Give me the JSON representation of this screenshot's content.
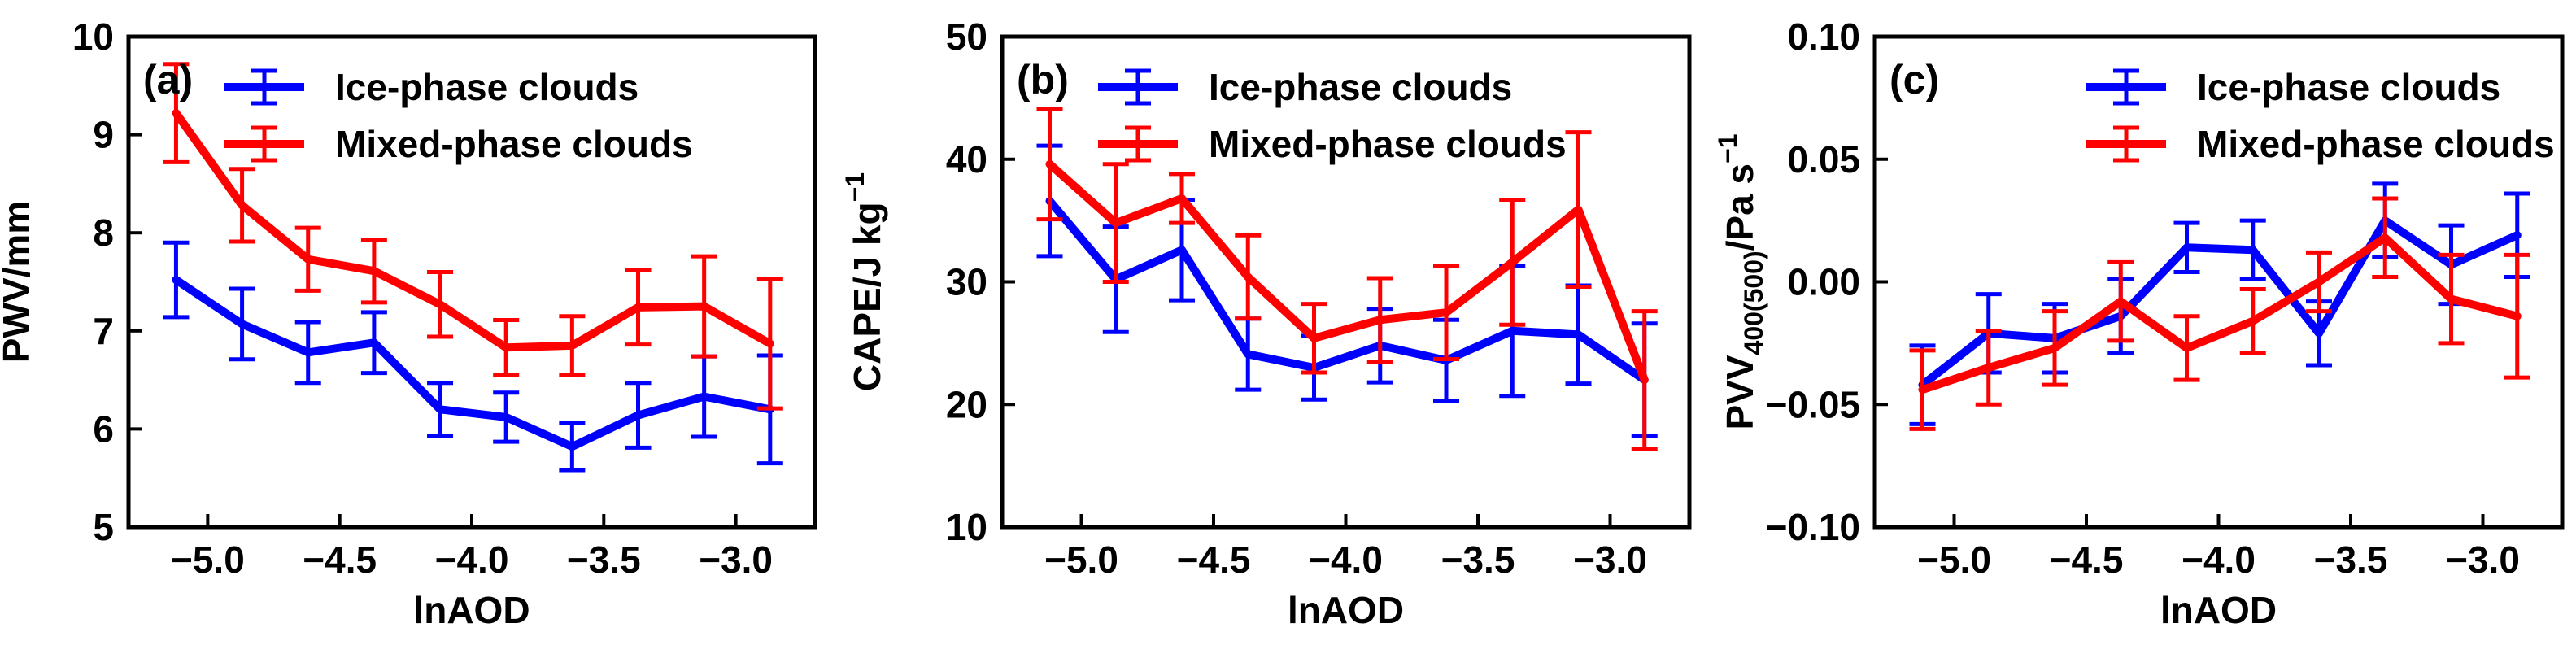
{
  "chart_data": [
    {
      "type": "line",
      "panel_label": "(a)",
      "xlabel": "lnAOD",
      "ylabel": "PWV/mm",
      "xlim": [
        -5.3,
        -2.7
      ],
      "ylim": [
        5,
        10
      ],
      "xticks": [
        -5.0,
        -4.5,
        -4.0,
        -3.5,
        -3.0
      ],
      "xtick_labels": [
        "−5.0",
        "−4.5",
        "−4.0",
        "−3.5",
        "−3.0"
      ],
      "yticks": [
        5,
        6,
        7,
        8,
        9,
        10
      ],
      "ytick_labels": [
        "5",
        "6",
        "7",
        "8",
        "9",
        "10"
      ],
      "x": [
        -5.12,
        -4.87,
        -4.62,
        -4.37,
        -4.12,
        -3.87,
        -3.62,
        -3.37,
        -3.12,
        -2.87
      ],
      "legend_location": "top-left",
      "series": [
        {
          "name": "Ice-phase clouds",
          "color": "#0000ff",
          "values": [
            7.52,
            7.07,
            6.78,
            6.88,
            6.2,
            6.12,
            5.82,
            6.14,
            6.33,
            6.2
          ],
          "errors": [
            0.38,
            0.36,
            0.31,
            0.31,
            0.27,
            0.25,
            0.24,
            0.33,
            0.41,
            0.55
          ]
        },
        {
          "name": "Mixed-phase clouds",
          "color": "#ff0000",
          "values": [
            9.22,
            8.28,
            7.73,
            7.61,
            7.27,
            6.83,
            6.85,
            7.24,
            7.25,
            6.87
          ],
          "errors": [
            0.5,
            0.37,
            0.32,
            0.32,
            0.33,
            0.28,
            0.3,
            0.38,
            0.51,
            0.66
          ]
        }
      ]
    },
    {
      "type": "line",
      "panel_label": "(b)",
      "xlabel": "lnAOD",
      "ylabel": "CAPE/J kg",
      "ylabel_superscript": "−1",
      "xlim": [
        -5.3,
        -2.7
      ],
      "ylim": [
        10,
        50
      ],
      "xticks": [
        -5.0,
        -4.5,
        -4.0,
        -3.5,
        -3.0
      ],
      "xtick_labels": [
        "−5.0",
        "−4.5",
        "−4.0",
        "−3.5",
        "−3.0"
      ],
      "yticks": [
        10,
        20,
        30,
        40,
        50
      ],
      "ytick_labels": [
        "10",
        "20",
        "30",
        "40",
        "50"
      ],
      "x": [
        -5.12,
        -4.87,
        -4.62,
        -4.37,
        -4.12,
        -3.87,
        -3.62,
        -3.37,
        -3.12,
        -2.87
      ],
      "legend_location": "top-left",
      "series": [
        {
          "name": "Ice-phase clouds",
          "color": "#0000ff",
          "values": [
            36.6,
            30.2,
            32.6,
            24.1,
            23.0,
            24.8,
            23.6,
            26.0,
            25.7,
            22.0
          ],
          "errors": [
            4.5,
            4.3,
            4.1,
            2.9,
            2.6,
            3.0,
            3.3,
            5.3,
            4.0,
            4.6
          ]
        },
        {
          "name": "Mixed-phase clouds",
          "color": "#ff0000",
          "values": [
            39.6,
            34.8,
            36.8,
            30.4,
            25.4,
            26.9,
            27.5,
            31.6,
            35.9,
            22.0
          ],
          "errors": [
            4.5,
            4.8,
            2.0,
            3.4,
            2.8,
            3.4,
            3.8,
            5.1,
            6.3,
            5.6
          ]
        }
      ]
    },
    {
      "type": "line",
      "panel_label": "(c)",
      "xlabel": "lnAOD",
      "ylabel": "PVV",
      "ylabel_subscript": "400(500)",
      "ylabel_suffix": "/Pa s",
      "ylabel_superscript": "−1",
      "xlim": [
        -5.3,
        -2.7
      ],
      "ylim": [
        -0.1,
        0.1
      ],
      "xticks": [
        -5.0,
        -4.5,
        -4.0,
        -3.5,
        -3.0
      ],
      "xtick_labels": [
        "−5.0",
        "−4.5",
        "−4.0",
        "−3.5",
        "−3.0"
      ],
      "yticks": [
        -0.1,
        -0.05,
        0.0,
        0.05,
        0.1
      ],
      "ytick_labels": [
        "−0.10",
        "−0.05",
        "0.00",
        "0.05",
        "0.10"
      ],
      "x": [
        -5.12,
        -4.87,
        -4.62,
        -4.37,
        -4.12,
        -3.87,
        -3.62,
        -3.37,
        -3.12,
        -2.87
      ],
      "legend_location": "top-right",
      "series": [
        {
          "name": "Ice-phase clouds",
          "color": "#0000ff",
          "values": [
            -0.042,
            -0.021,
            -0.023,
            -0.014,
            0.014,
            0.013,
            -0.021,
            0.025,
            0.007,
            0.019
          ],
          "errors": [
            0.016,
            0.016,
            0.014,
            0.015,
            0.01,
            0.012,
            0.013,
            0.015,
            0.016,
            0.017
          ]
        },
        {
          "name": "Mixed-phase clouds",
          "color": "#ff0000",
          "values": [
            -0.044,
            -0.035,
            -0.027,
            -0.008,
            -0.027,
            -0.016,
            0.0,
            0.018,
            -0.007,
            -0.014
          ],
          "errors": [
            0.016,
            0.015,
            0.015,
            0.016,
            0.013,
            0.013,
            0.012,
            0.016,
            0.018,
            0.025
          ]
        }
      ]
    }
  ]
}
